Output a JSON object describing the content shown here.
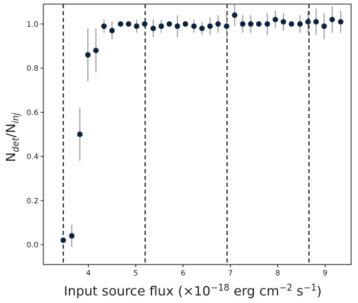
{
  "chart_data": {
    "type": "scatter",
    "xlabel": "Input source flux (×10⁻¹⁸ erg cm⁻² s⁻¹)",
    "ylabel": "N_det/N_inj",
    "xlim": [
      3.05,
      9.55
    ],
    "ylim": [
      -0.09,
      1.09
    ],
    "xticks": [
      4,
      5,
      6,
      7,
      8,
      9
    ],
    "yticks": [
      0.0,
      0.2,
      0.4,
      0.6,
      0.8,
      1.0
    ],
    "grid": false,
    "vlines": [
      3.47,
      5.2,
      6.93,
      8.66
    ],
    "marker_color": "#0b2240",
    "errorbar_color": "#888888",
    "points": [
      {
        "x": 3.47,
        "y": 0.02,
        "yerr": 0.0
      },
      {
        "x": 3.65,
        "y": 0.04,
        "yerr": 0.05
      },
      {
        "x": 3.82,
        "y": 0.5,
        "yerr": 0.12
      },
      {
        "x": 3.99,
        "y": 0.86,
        "yerr": 0.12
      },
      {
        "x": 4.16,
        "y": 0.88,
        "yerr": 0.1
      },
      {
        "x": 4.33,
        "y": 0.99,
        "yerr": 0.03
      },
      {
        "x": 4.5,
        "y": 0.97,
        "yerr": 0.04
      },
      {
        "x": 4.68,
        "y": 1.0,
        "yerr": 0.0
      },
      {
        "x": 4.85,
        "y": 1.0,
        "yerr": 0.0
      },
      {
        "x": 5.02,
        "y": 0.99,
        "yerr": 0.03
      },
      {
        "x": 5.19,
        "y": 1.0,
        "yerr": 0.0
      },
      {
        "x": 5.37,
        "y": 0.98,
        "yerr": 0.04
      },
      {
        "x": 5.54,
        "y": 0.99,
        "yerr": 0.03
      },
      {
        "x": 5.71,
        "y": 1.0,
        "yerr": 0.0
      },
      {
        "x": 5.88,
        "y": 0.99,
        "yerr": 0.05
      },
      {
        "x": 6.05,
        "y": 1.0,
        "yerr": 0.0
      },
      {
        "x": 6.23,
        "y": 0.99,
        "yerr": 0.03
      },
      {
        "x": 6.4,
        "y": 0.98,
        "yerr": 0.03
      },
      {
        "x": 6.57,
        "y": 0.99,
        "yerr": 0.04
      },
      {
        "x": 6.74,
        "y": 1.0,
        "yerr": 0.04
      },
      {
        "x": 6.92,
        "y": 0.99,
        "yerr": 0.05
      },
      {
        "x": 7.09,
        "y": 1.04,
        "yerr": 0.05
      },
      {
        "x": 7.26,
        "y": 1.0,
        "yerr": 0.04
      },
      {
        "x": 7.43,
        "y": 1.0,
        "yerr": 0.04
      },
      {
        "x": 7.6,
        "y": 1.0,
        "yerr": 0.0
      },
      {
        "x": 7.78,
        "y": 1.0,
        "yerr": 0.05
      },
      {
        "x": 7.95,
        "y": 1.02,
        "yerr": 0.04
      },
      {
        "x": 8.12,
        "y": 1.01,
        "yerr": 0.04
      },
      {
        "x": 8.29,
        "y": 1.0,
        "yerr": 0.0
      },
      {
        "x": 8.47,
        "y": 1.0,
        "yerr": 0.04
      },
      {
        "x": 8.64,
        "y": 1.01,
        "yerr": 0.05
      },
      {
        "x": 8.81,
        "y": 1.01,
        "yerr": 0.06
      },
      {
        "x": 8.98,
        "y": 0.99,
        "yerr": 0.06
      },
      {
        "x": 9.15,
        "y": 1.02,
        "yerr": 0.06
      },
      {
        "x": 9.33,
        "y": 1.01,
        "yerr": 0.05
      }
    ]
  }
}
